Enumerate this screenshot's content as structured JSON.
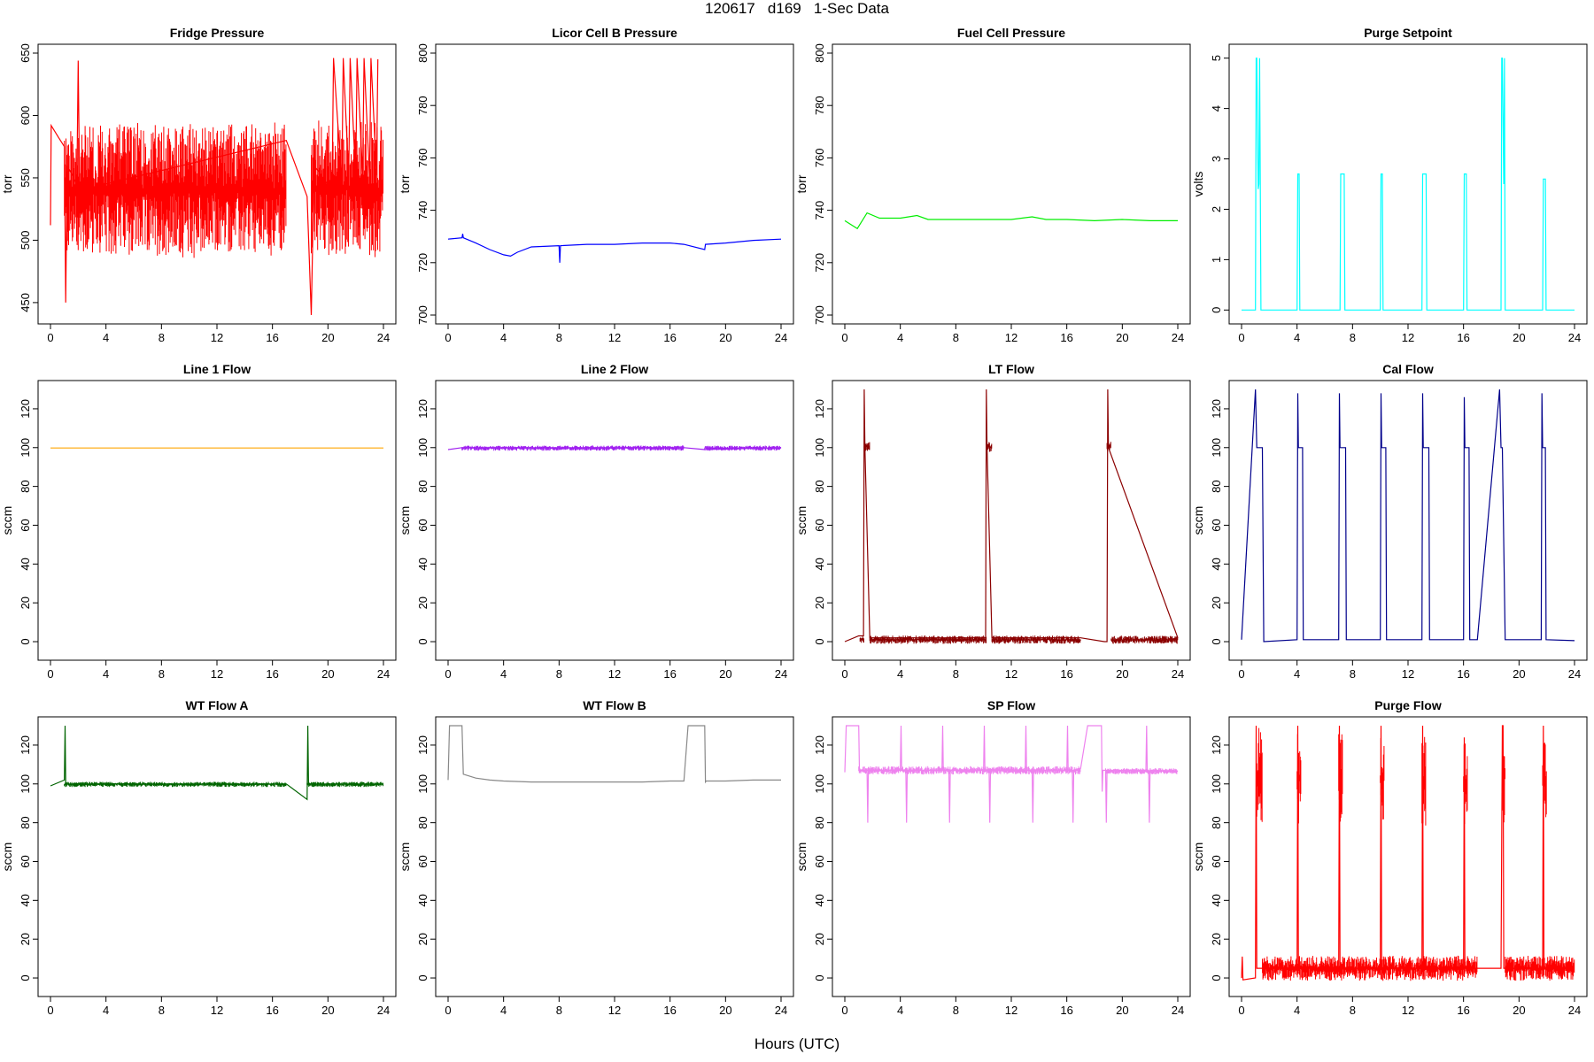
{
  "page": {
    "title": "120617   d169   1-Sec Data",
    "xlabel": "Hours (UTC)"
  },
  "chart_data": [
    {
      "type": "line",
      "title": "Fridge Pressure",
      "ylabel": "torr",
      "color": "#ff0000",
      "xlim": [
        0,
        24
      ],
      "ylim": [
        440,
        650
      ],
      "xticks": [
        0,
        4,
        8,
        12,
        16,
        20,
        24
      ],
      "yticks": [
        450,
        500,
        550,
        600,
        650
      ],
      "noise": [
        {
          "x": [
            1.0,
            17.0
          ],
          "lo": 490,
          "hi": 590
        },
        {
          "x": [
            18.8,
            24.0
          ],
          "lo": 490,
          "hi": 592
        }
      ],
      "series": [
        {
          "name": "Fridge Pressure",
          "x": [
            0.0,
            0.05,
            0.6,
            1.0,
            1.1,
            1.2,
            1.9,
            2.0,
            2.1,
            17.0,
            18.5,
            18.8,
            19.0,
            20.3,
            20.4,
            21.0,
            21.1,
            21.5,
            21.6,
            22.0,
            22.1,
            22.5,
            22.6,
            23.0,
            23.1,
            23.5,
            23.6
          ],
          "y": [
            512,
            592,
            582,
            575,
            450,
            560,
            545,
            644,
            540,
            580,
            535,
            440,
            560,
            540,
            646,
            545,
            646,
            550,
            646,
            548,
            646,
            552,
            646,
            550,
            646,
            552,
            645
          ]
        }
      ]
    },
    {
      "type": "line",
      "title": "Licor Cell B Pressure",
      "ylabel": "torr",
      "color": "#0000ff",
      "xlim": [
        0,
        24
      ],
      "ylim": [
        700,
        800
      ],
      "xticks": [
        0,
        4,
        8,
        12,
        16,
        20,
        24
      ],
      "yticks": [
        700,
        720,
        740,
        760,
        780,
        800
      ],
      "series": [
        {
          "name": "Licor Cell B Pressure",
          "x": [
            0.0,
            1.0,
            1.05,
            1.1,
            2.0,
            3.0,
            4.0,
            4.5,
            5.0,
            6.0,
            8.0,
            8.05,
            8.1,
            10.0,
            12.0,
            14.0,
            16.0,
            17.0,
            18.5,
            18.55,
            20.0,
            22.0,
            24.0
          ],
          "y": [
            729,
            729.5,
            731,
            729.5,
            727.5,
            725,
            723,
            722.5,
            724,
            726,
            726.5,
            720,
            726.5,
            727,
            727,
            727.5,
            727.5,
            727,
            725,
            727,
            727.5,
            728.5,
            729
          ]
        }
      ]
    },
    {
      "type": "line",
      "title": "Fuel Cell Pressure",
      "ylabel": "torr",
      "color": "#00ee00",
      "xlim": [
        0,
        24
      ],
      "ylim": [
        700,
        800
      ],
      "xticks": [
        0,
        4,
        8,
        12,
        16,
        20,
        24
      ],
      "yticks": [
        700,
        720,
        740,
        760,
        780,
        800
      ],
      "series": [
        {
          "name": "Fuel Cell Pressure",
          "x": [
            0.0,
            0.9,
            1.6,
            2.5,
            4.0,
            5.2,
            6.0,
            8.0,
            10.0,
            12.0,
            13.5,
            14.5,
            16.0,
            18.0,
            20.0,
            22.0,
            24.0
          ],
          "y": [
            736,
            733,
            739,
            737,
            737,
            738,
            736.5,
            736.5,
            736.5,
            736.5,
            737.5,
            736.5,
            736.5,
            736,
            736.5,
            736,
            736
          ]
        }
      ]
    },
    {
      "type": "line",
      "title": "Purge Setpoint",
      "ylabel": "volts",
      "color": "#00ffff",
      "xlim": [
        0,
        24
      ],
      "ylim": [
        -0.1,
        5.1
      ],
      "xticks": [
        0,
        4,
        8,
        12,
        16,
        20,
        24
      ],
      "yticks": [
        0,
        1,
        2,
        3,
        4,
        5
      ],
      "series": [
        {
          "name": "Purge Setpoint",
          "x": [
            0.0,
            1.0,
            1.05,
            1.1,
            1.2,
            1.25,
            1.3,
            1.35,
            1.4,
            4.0,
            4.05,
            4.15,
            4.2,
            7.1,
            7.15,
            7.4,
            7.45,
            10.0,
            10.05,
            10.15,
            10.2,
            13.0,
            13.05,
            13.3,
            13.35,
            16.0,
            16.05,
            16.2,
            16.25,
            18.7,
            18.75,
            18.8,
            18.9,
            18.95,
            19.0,
            21.7,
            21.75,
            21.9,
            21.95,
            24.0
          ],
          "y": [
            0,
            0,
            5,
            5,
            2.4,
            2.5,
            5,
            2.4,
            0,
            0,
            2.7,
            2.7,
            0,
            0,
            2.7,
            2.7,
            0,
            0,
            2.7,
            2.7,
            0,
            0,
            2.7,
            2.7,
            0,
            0,
            2.7,
            2.7,
            0,
            0,
            5,
            5,
            2.5,
            5,
            0,
            0,
            2.6,
            2.6,
            0,
            0
          ]
        }
      ]
    },
    {
      "type": "line",
      "title": "Line 1 Flow",
      "ylabel": "sccm",
      "color": "#ffa500",
      "xlim": [
        0,
        24
      ],
      "ylim": [
        -5,
        130
      ],
      "xticks": [
        0,
        4,
        8,
        12,
        16,
        20,
        24
      ],
      "yticks": [
        0,
        20,
        40,
        60,
        80,
        100,
        120
      ],
      "series": [
        {
          "name": "Line 1 Flow",
          "x": [
            0.0,
            24.0
          ],
          "y": [
            99.8,
            99.8
          ]
        }
      ]
    },
    {
      "type": "line",
      "title": "Line 2 Flow",
      "ylabel": "sccm",
      "color": "#a020f0",
      "xlim": [
        0,
        24
      ],
      "ylim": [
        -5,
        130
      ],
      "xticks": [
        0,
        4,
        8,
        12,
        16,
        20,
        24
      ],
      "yticks": [
        0,
        20,
        40,
        60,
        80,
        100,
        120
      ],
      "noise": [
        {
          "x": [
            1.0,
            17.0
          ],
          "lo": 98.5,
          "hi": 101
        },
        {
          "x": [
            18.5,
            24.0
          ],
          "lo": 98.5,
          "hi": 101
        }
      ],
      "series": [
        {
          "name": "Line 2 Flow",
          "x": [
            0.0,
            1.0,
            17.0,
            18.5,
            24.0
          ],
          "y": [
            99,
            100,
            100,
            99,
            100
          ]
        }
      ]
    },
    {
      "type": "line",
      "title": "LT Flow",
      "ylabel": "sccm",
      "color": "#8b0000",
      "xlim": [
        0,
        24
      ],
      "ylim": [
        -5,
        130
      ],
      "xticks": [
        0,
        4,
        8,
        12,
        16,
        20,
        24
      ],
      "yticks": [
        0,
        20,
        40,
        60,
        80,
        100,
        120
      ],
      "noise": [
        {
          "x": [
            1.1,
            1.4
          ],
          "lo": -1,
          "hi": 3
        },
        {
          "x": [
            1.4,
            1.8
          ],
          "lo": 98,
          "hi": 103
        },
        {
          "x": [
            1.8,
            10.2
          ],
          "lo": -1,
          "hi": 3
        },
        {
          "x": [
            10.2,
            10.6
          ],
          "lo": 98,
          "hi": 103
        },
        {
          "x": [
            10.6,
            17.0
          ],
          "lo": -1,
          "hi": 3
        },
        {
          "x": [
            18.9,
            19.2
          ],
          "lo": 98,
          "hi": 103
        },
        {
          "x": [
            19.2,
            24.0
          ],
          "lo": -1,
          "hi": 3
        }
      ],
      "series": [
        {
          "name": "LT Flow",
          "x": [
            0.0,
            1.0,
            1.35,
            1.4,
            1.45,
            1.8,
            10.15,
            10.2,
            10.25,
            10.6,
            17.0,
            18.7,
            18.9,
            18.95,
            19.0,
            24.0
          ],
          "y": [
            0,
            3,
            3,
            130,
            100,
            2,
            2,
            130,
            100,
            2,
            2,
            0,
            0,
            130,
            100,
            2
          ]
        }
      ]
    },
    {
      "type": "line",
      "title": "Cal Flow",
      "ylabel": "sccm",
      "color": "#00008b",
      "xlim": [
        0,
        24
      ],
      "ylim": [
        -5,
        130
      ],
      "xticks": [
        0,
        4,
        8,
        12,
        16,
        20,
        24
      ],
      "yticks": [
        0,
        20,
        40,
        60,
        80,
        100,
        120
      ],
      "series": [
        {
          "name": "Cal Flow",
          "x": [
            0.0,
            1.0,
            1.1,
            1.5,
            1.6,
            4.0,
            4.05,
            4.1,
            4.4,
            4.45,
            7.0,
            7.05,
            7.1,
            7.5,
            7.55,
            10.0,
            10.05,
            10.1,
            10.4,
            10.45,
            13.0,
            13.05,
            13.1,
            13.5,
            13.55,
            16.0,
            16.05,
            16.1,
            16.4,
            16.45,
            17.0,
            18.6,
            18.7,
            18.8,
            19.0,
            21.6,
            21.65,
            21.7,
            21.9,
            21.95,
            24.0
          ],
          "y": [
            1,
            130,
            100,
            100,
            0,
            1,
            128,
            100,
            100,
            1,
            1,
            128,
            100,
            100,
            1,
            1,
            128,
            100,
            100,
            1,
            1,
            128,
            100,
            100,
            1,
            1,
            126,
            100,
            100,
            1,
            1,
            130,
            100,
            100,
            1,
            1,
            128,
            100,
            100,
            1,
            0.5
          ]
        }
      ]
    },
    {
      "type": "line",
      "title": "WT Flow A",
      "ylabel": "sccm",
      "color": "#006400",
      "xlim": [
        0,
        24
      ],
      "ylim": [
        -5,
        130
      ],
      "xticks": [
        0,
        4,
        8,
        12,
        16,
        20,
        24
      ],
      "yticks": [
        0,
        20,
        40,
        60,
        80,
        100,
        120
      ],
      "noise": [
        {
          "x": [
            1.0,
            17.0
          ],
          "lo": 98.5,
          "hi": 101
        },
        {
          "x": [
            18.5,
            24.0
          ],
          "lo": 98.5,
          "hi": 101
        }
      ],
      "series": [
        {
          "name": "WT Flow A",
          "x": [
            0.0,
            1.0,
            1.05,
            1.1,
            17.0,
            18.5,
            18.55,
            18.6,
            24.0
          ],
          "y": [
            99,
            102,
            130,
            100,
            100,
            92,
            130,
            100,
            100
          ]
        }
      ]
    },
    {
      "type": "line",
      "title": "WT Flow B",
      "ylabel": "sccm",
      "color": "#888888",
      "xlim": [
        0,
        24
      ],
      "ylim": [
        -5,
        130
      ],
      "xticks": [
        0,
        4,
        8,
        12,
        16,
        20,
        24
      ],
      "yticks": [
        0,
        20,
        40,
        60,
        80,
        100,
        120
      ],
      "series": [
        {
          "name": "WT Flow B",
          "x": [
            0.0,
            0.1,
            1.0,
            1.1,
            2.0,
            3.0,
            4.0,
            6.0,
            8.0,
            10.0,
            12.0,
            14.0,
            16.0,
            17.0,
            17.3,
            18.5,
            18.55,
            18.6,
            20.0,
            22.0,
            24.0
          ],
          "y": [
            102,
            130,
            130,
            105,
            103,
            102,
            101.5,
            101,
            101,
            101,
            101,
            101,
            101.5,
            101.5,
            130,
            130,
            101,
            101.5,
            101.5,
            102,
            102
          ]
        }
      ]
    },
    {
      "type": "line",
      "title": "SP Flow",
      "ylabel": "sccm",
      "color": "#ee82ee",
      "xlim": [
        0,
        24
      ],
      "ylim": [
        -5,
        130
      ],
      "xticks": [
        0,
        4,
        8,
        12,
        16,
        20,
        24
      ],
      "yticks": [
        0,
        20,
        40,
        60,
        80,
        100,
        120
      ],
      "noise": [
        {
          "x": [
            1.0,
            17.0
          ],
          "lo": 105,
          "hi": 109
        },
        {
          "x": [
            18.8,
            24.0
          ],
          "lo": 105,
          "hi": 108
        }
      ],
      "series": [
        {
          "name": "SP Flow",
          "x": [
            0.0,
            0.1,
            1.0,
            1.05,
            1.1,
            1.6,
            1.65,
            1.7,
            4.0,
            4.05,
            4.1,
            4.4,
            4.45,
            4.5,
            7.0,
            7.05,
            7.1,
            7.5,
            7.55,
            7.6,
            10.0,
            10.05,
            10.1,
            10.4,
            10.45,
            10.5,
            13.0,
            13.05,
            13.1,
            13.5,
            13.55,
            13.6,
            16.0,
            16.05,
            16.1,
            16.4,
            16.45,
            16.5,
            17.0,
            17.5,
            18.5,
            18.55,
            18.6,
            18.8,
            18.85,
            18.9,
            21.7,
            21.75,
            21.8,
            21.9,
            21.95,
            22.0,
            24.0
          ],
          "y": [
            106,
            130,
            130,
            107,
            107,
            107,
            80,
            107,
            107,
            130,
            107,
            107,
            80,
            107,
            107,
            130,
            107,
            107,
            80,
            107,
            107,
            130,
            107,
            107,
            80,
            107,
            107,
            130,
            107,
            107,
            80,
            107,
            107,
            130,
            107,
            107,
            80,
            107,
            108,
            130,
            130,
            96,
            107,
            107,
            80,
            107,
            107,
            130,
            107,
            107,
            80,
            107,
            106.5
          ]
        }
      ]
    },
    {
      "type": "line",
      "title": "Purge Flow",
      "ylabel": "sccm",
      "color": "#ff0000",
      "xlim": [
        0,
        24
      ],
      "ylim": [
        -5,
        130
      ],
      "xticks": [
        0,
        4,
        8,
        12,
        16,
        20,
        24
      ],
      "yticks": [
        0,
        20,
        40,
        60,
        80,
        100,
        120
      ],
      "noise": [
        {
          "x": [
            1.1,
            1.5
          ],
          "lo": 80,
          "hi": 128
        },
        {
          "x": [
            1.5,
            17.0
          ],
          "lo": -1,
          "hi": 11
        },
        {
          "x": [
            18.8,
            19.0
          ],
          "lo": 80,
          "hi": 128
        },
        {
          "x": [
            19.0,
            24.0
          ],
          "lo": -1,
          "hi": 11
        },
        {
          "x": [
            4.0,
            4.3
          ],
          "lo": 80,
          "hi": 126
        },
        {
          "x": [
            7.0,
            7.3
          ],
          "lo": 80,
          "hi": 126
        },
        {
          "x": [
            10.0,
            10.3
          ],
          "lo": 80,
          "hi": 125
        },
        {
          "x": [
            13.0,
            13.3
          ],
          "lo": 80,
          "hi": 126
        },
        {
          "x": [
            16.0,
            16.3
          ],
          "lo": 80,
          "hi": 122
        },
        {
          "x": [
            21.7,
            22.0
          ],
          "lo": 80,
          "hi": 124
        }
      ],
      "series": [
        {
          "name": "Purge Flow",
          "x": [
            0.0,
            0.05,
            0.1,
            1.0,
            1.05,
            1.1,
            4.0,
            4.05,
            4.1,
            7.0,
            7.05,
            7.1,
            10.0,
            10.05,
            10.1,
            13.0,
            13.05,
            13.1,
            16.0,
            16.05,
            16.1,
            17.0,
            18.7,
            18.8,
            18.85,
            18.9,
            21.7,
            21.75,
            21.8,
            24.0
          ],
          "y": [
            0,
            11,
            -1,
            0,
            130,
            5,
            5,
            130,
            5,
            5,
            130,
            5,
            5,
            130,
            5,
            5,
            130,
            5,
            5,
            124,
            5,
            5,
            5,
            130,
            130,
            5,
            5,
            130,
            5,
            5
          ]
        }
      ]
    }
  ]
}
